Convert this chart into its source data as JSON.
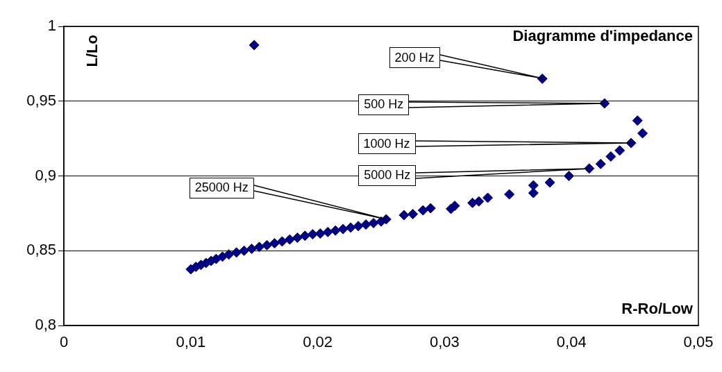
{
  "chart_data": {
    "type": "scatter",
    "title": "Diagramme d'impedance",
    "xlabel": "R-Ro/Low",
    "ylabel": "L/Lo",
    "x": [
      0.01,
      0.0104,
      0.0108,
      0.0112,
      0.0116,
      0.012,
      0.0125,
      0.013,
      0.0136,
      0.0142,
      0.0148,
      0.0154,
      0.016,
      0.0166,
      0.0172,
      0.0178,
      0.0184,
      0.019,
      0.0196,
      0.0202,
      0.0208,
      0.0214,
      0.022,
      0.0226,
      0.0232,
      0.0238,
      0.0244,
      0.025,
      0.0254,
      0.0268,
      0.0275,
      0.0283,
      0.0289,
      0.0305,
      0.0308,
      0.0322,
      0.0327,
      0.0334,
      0.0351,
      0.037,
      0.037,
      0.0383,
      0.0398,
      0.0414,
      0.0423,
      0.0431,
      0.0438,
      0.0447,
      0.0456,
      0.0452,
      0.0426,
      0.0377,
      0.015
    ],
    "series": [
      {
        "color": "#000080",
        "values": [
          0.8376,
          0.8392,
          0.8405,
          0.8418,
          0.8432,
          0.8445,
          0.846,
          0.8475,
          0.8488,
          0.85,
          0.8513,
          0.8525,
          0.8537,
          0.855,
          0.8562,
          0.8575,
          0.8587,
          0.86,
          0.861,
          0.8615,
          0.8625,
          0.8635,
          0.8645,
          0.8655,
          0.8665,
          0.8675,
          0.8685,
          0.8695,
          0.871,
          0.8738,
          0.8745,
          0.877,
          0.8784,
          0.878,
          0.88,
          0.882,
          0.883,
          0.8854,
          0.8877,
          0.8886,
          0.8937,
          0.8956,
          0.9,
          0.905,
          0.908,
          0.913,
          0.917,
          0.922,
          0.9285,
          0.937,
          0.9485,
          0.965,
          0.9875
        ]
      }
    ],
    "xlim": [
      0,
      0.05
    ],
    "ylim": [
      0.8,
      1
    ],
    "xticks": [
      0,
      {
        "value": 0.01,
        "label": "0,01"
      },
      {
        "value": 0.02,
        "label": "0,02"
      },
      {
        "value": 0.03,
        "label": "0,03"
      },
      {
        "value": 0.04,
        "label": "0,04"
      },
      {
        "value": 0.05,
        "label": "0,05"
      }
    ],
    "yticks": [
      {
        "value": 0.8,
        "label": "0,8"
      },
      {
        "value": 0.85,
        "label": "0,85"
      },
      {
        "value": 0.9,
        "label": "0,9"
      },
      {
        "value": 0.95,
        "label": "0,95"
      },
      1
    ],
    "grid": "y",
    "legend": false,
    "marker": "diamond",
    "annotations": [
      "200 Hz",
      "500 Hz",
      "1000 Hz",
      "5000 Hz",
      "25000 Hz"
    ]
  }
}
